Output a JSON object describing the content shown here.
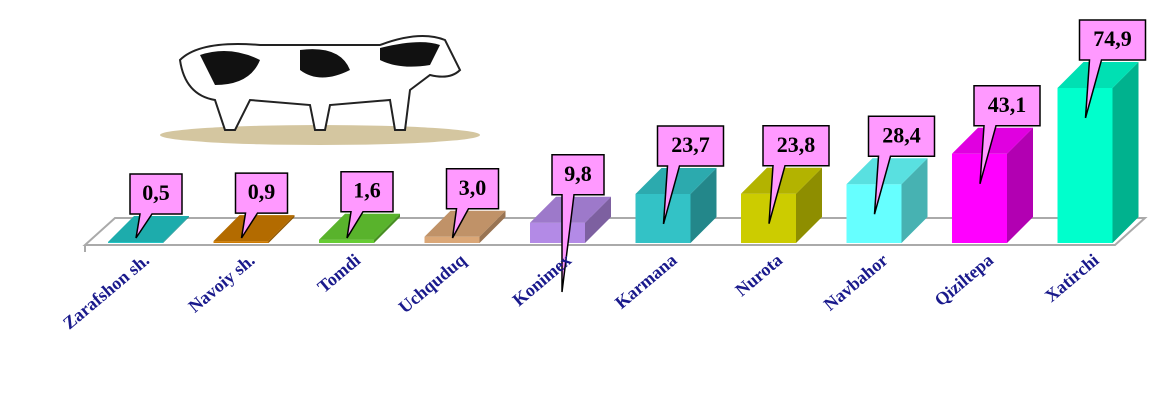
{
  "chart_data": {
    "type": "bar3d",
    "categories": [
      "Zarafshon sh.",
      "Navoiy sh.",
      "Tomdi",
      "Uchquduq",
      "Konimex",
      "Karmana",
      "Nurota",
      "Navbahor",
      "Qiziltepa",
      "Xatirchi"
    ],
    "values": [
      0.5,
      0.9,
      1.6,
      3.0,
      9.8,
      23.7,
      23.8,
      28.4,
      43.1,
      74.9
    ],
    "value_labels": [
      "0,5",
      "0,9",
      "1,6",
      "3,0",
      "9,8",
      "23,7",
      "23,8",
      "28,4",
      "43,1",
      "74,9"
    ],
    "colors": [
      "#22c4c4",
      "#cc7a00",
      "#66cc33",
      "#dba777",
      "#b38ae6",
      "#33c2c6",
      "#cccc00",
      "#66ffff",
      "#ff00ff",
      "#00ffcc"
    ]
  }
}
